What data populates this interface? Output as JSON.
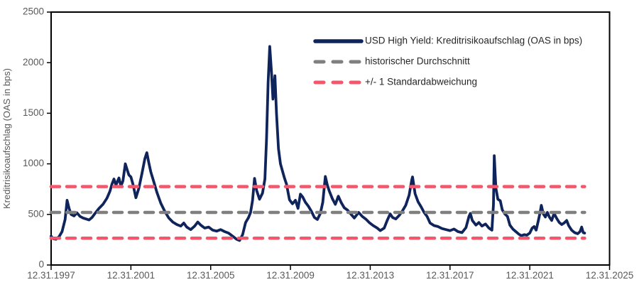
{
  "colors": {
    "background": "#ffffff",
    "axis_line": "#000000",
    "axis_text": "#595959",
    "legend_text": "#262626",
    "series_navy": "#10245c",
    "series_gray": "#7f7f7f",
    "series_red": "#f4566b"
  },
  "chart_data": {
    "type": "line",
    "title": "",
    "xlabel": "",
    "ylabel": "Kreditrisikoaufschlag (OAS in bps)",
    "grid": false,
    "legend_position": "top-right-inside",
    "x_axis": {
      "tick_labels": [
        "12.31.1997",
        "12.31.2001",
        "12.31.2005",
        "12.31.2009",
        "12.31.2013",
        "12.31.2017",
        "12.31.2021",
        "12.31.2025"
      ],
      "tick_years": [
        1998,
        2002,
        2006,
        2010,
        2014,
        2018,
        2022,
        2026
      ]
    },
    "y_axis": {
      "ticks": [
        0,
        500,
        1000,
        1500,
        2000,
        2500
      ],
      "range": [
        0,
        2500
      ]
    },
    "data_start_year": 1998.0,
    "data_end_year": 2024.75,
    "series": [
      {
        "name": "USD High Yield: Kreditrisikoaufschlag (OAS in bps)",
        "kind": "line",
        "style": "solid",
        "color": "#10245c",
        "points": [
          [
            1998.0,
            285
          ],
          [
            1998.1,
            260
          ],
          [
            1998.25,
            255
          ],
          [
            1998.4,
            280
          ],
          [
            1998.55,
            330
          ],
          [
            1998.7,
            450
          ],
          [
            1998.8,
            640
          ],
          [
            1998.9,
            560
          ],
          [
            1999.0,
            500
          ],
          [
            1999.15,
            485
          ],
          [
            1999.3,
            515
          ],
          [
            1999.45,
            480
          ],
          [
            1999.6,
            465
          ],
          [
            1999.75,
            455
          ],
          [
            1999.9,
            445
          ],
          [
            2000.05,
            470
          ],
          [
            2000.2,
            510
          ],
          [
            2000.4,
            560
          ],
          [
            2000.6,
            600
          ],
          [
            2000.8,
            660
          ],
          [
            2000.95,
            730
          ],
          [
            2001.05,
            800
          ],
          [
            2001.15,
            850
          ],
          [
            2001.25,
            790
          ],
          [
            2001.4,
            860
          ],
          [
            2001.5,
            780
          ],
          [
            2001.6,
            830
          ],
          [
            2001.72,
            1000
          ],
          [
            2001.8,
            950
          ],
          [
            2001.9,
            890
          ],
          [
            2002.0,
            870
          ],
          [
            2002.1,
            800
          ],
          [
            2002.25,
            665
          ],
          [
            2002.4,
            760
          ],
          [
            2002.55,
            900
          ],
          [
            2002.7,
            1050
          ],
          [
            2002.8,
            1110
          ],
          [
            2002.9,
            1010
          ],
          [
            2003.0,
            920
          ],
          [
            2003.15,
            820
          ],
          [
            2003.3,
            720
          ],
          [
            2003.5,
            610
          ],
          [
            2003.7,
            530
          ],
          [
            2003.9,
            465
          ],
          [
            2004.1,
            425
          ],
          [
            2004.3,
            400
          ],
          [
            2004.5,
            385
          ],
          [
            2004.65,
            415
          ],
          [
            2004.8,
            375
          ],
          [
            2005.0,
            350
          ],
          [
            2005.2,
            385
          ],
          [
            2005.35,
            425
          ],
          [
            2005.5,
            395
          ],
          [
            2005.7,
            365
          ],
          [
            2005.9,
            375
          ],
          [
            2006.1,
            345
          ],
          [
            2006.3,
            335
          ],
          [
            2006.5,
            350
          ],
          [
            2006.7,
            330
          ],
          [
            2006.9,
            315
          ],
          [
            2007.1,
            285
          ],
          [
            2007.3,
            255
          ],
          [
            2007.45,
            242
          ],
          [
            2007.6,
            300
          ],
          [
            2007.75,
            420
          ],
          [
            2007.9,
            470
          ],
          [
            2008.0,
            520
          ],
          [
            2008.1,
            640
          ],
          [
            2008.2,
            855
          ],
          [
            2008.3,
            740
          ],
          [
            2008.45,
            650
          ],
          [
            2008.6,
            710
          ],
          [
            2008.72,
            850
          ],
          [
            2008.8,
            1250
          ],
          [
            2008.88,
            1800
          ],
          [
            2008.96,
            2160
          ],
          [
            2009.05,
            1900
          ],
          [
            2009.12,
            1640
          ],
          [
            2009.22,
            1870
          ],
          [
            2009.3,
            1500
          ],
          [
            2009.4,
            1150
          ],
          [
            2009.5,
            1000
          ],
          [
            2009.6,
            930
          ],
          [
            2009.7,
            860
          ],
          [
            2009.8,
            800
          ],
          [
            2009.95,
            645
          ],
          [
            2010.1,
            605
          ],
          [
            2010.25,
            640
          ],
          [
            2010.38,
            560
          ],
          [
            2010.5,
            700
          ],
          [
            2010.62,
            670
          ],
          [
            2010.75,
            620
          ],
          [
            2010.9,
            580
          ],
          [
            2011.05,
            530
          ],
          [
            2011.2,
            470
          ],
          [
            2011.35,
            450
          ],
          [
            2011.5,
            510
          ],
          [
            2011.62,
            620
          ],
          [
            2011.75,
            875
          ],
          [
            2011.85,
            790
          ],
          [
            2011.95,
            730
          ],
          [
            2012.1,
            655
          ],
          [
            2012.25,
            600
          ],
          [
            2012.4,
            680
          ],
          [
            2012.55,
            615
          ],
          [
            2012.7,
            565
          ],
          [
            2012.85,
            545
          ],
          [
            2013.0,
            510
          ],
          [
            2013.2,
            465
          ],
          [
            2013.42,
            520
          ],
          [
            2013.6,
            480
          ],
          [
            2013.8,
            450
          ],
          [
            2013.95,
            420
          ],
          [
            2014.15,
            390
          ],
          [
            2014.35,
            365
          ],
          [
            2014.5,
            340
          ],
          [
            2014.7,
            365
          ],
          [
            2014.85,
            440
          ],
          [
            2015.0,
            505
          ],
          [
            2015.12,
            470
          ],
          [
            2015.28,
            455
          ],
          [
            2015.45,
            490
          ],
          [
            2015.6,
            530
          ],
          [
            2015.78,
            590
          ],
          [
            2015.95,
            690
          ],
          [
            2016.08,
            840
          ],
          [
            2016.12,
            870
          ],
          [
            2016.25,
            705
          ],
          [
            2016.4,
            625
          ],
          [
            2016.55,
            575
          ],
          [
            2016.7,
            520
          ],
          [
            2016.85,
            480
          ],
          [
            2017.0,
            415
          ],
          [
            2017.2,
            390
          ],
          [
            2017.4,
            380
          ],
          [
            2017.6,
            360
          ],
          [
            2017.8,
            350
          ],
          [
            2018.0,
            340
          ],
          [
            2018.2,
            355
          ],
          [
            2018.4,
            330
          ],
          [
            2018.6,
            320
          ],
          [
            2018.8,
            370
          ],
          [
            2018.95,
            480
          ],
          [
            2019.02,
            510
          ],
          [
            2019.12,
            440
          ],
          [
            2019.3,
            395
          ],
          [
            2019.45,
            420
          ],
          [
            2019.6,
            385
          ],
          [
            2019.78,
            405
          ],
          [
            2019.95,
            365
          ],
          [
            2020.1,
            345
          ],
          [
            2020.18,
            600
          ],
          [
            2020.22,
            1080
          ],
          [
            2020.3,
            760
          ],
          [
            2020.4,
            650
          ],
          [
            2020.52,
            635
          ],
          [
            2020.62,
            545
          ],
          [
            2020.75,
            505
          ],
          [
            2020.88,
            480
          ],
          [
            2021.0,
            395
          ],
          [
            2021.15,
            355
          ],
          [
            2021.3,
            330
          ],
          [
            2021.45,
            305
          ],
          [
            2021.58,
            290
          ],
          [
            2021.72,
            300
          ],
          [
            2021.85,
            295
          ],
          [
            2022.0,
            315
          ],
          [
            2022.12,
            365
          ],
          [
            2022.22,
            380
          ],
          [
            2022.32,
            345
          ],
          [
            2022.42,
            430
          ],
          [
            2022.52,
            520
          ],
          [
            2022.58,
            590
          ],
          [
            2022.68,
            505
          ],
          [
            2022.78,
            475
          ],
          [
            2022.88,
            520
          ],
          [
            2022.98,
            475
          ],
          [
            2023.1,
            440
          ],
          [
            2023.22,
            510
          ],
          [
            2023.35,
            460
          ],
          [
            2023.48,
            420
          ],
          [
            2023.6,
            400
          ],
          [
            2023.72,
            415
          ],
          [
            2023.85,
            440
          ],
          [
            2023.95,
            390
          ],
          [
            2024.1,
            345
          ],
          [
            2024.25,
            320
          ],
          [
            2024.4,
            310
          ],
          [
            2024.52,
            330
          ],
          [
            2024.6,
            375
          ],
          [
            2024.68,
            320
          ],
          [
            2024.75,
            315
          ]
        ]
      },
      {
        "name": "historischer Durchschnitt",
        "kind": "hline",
        "style": "dashed",
        "color": "#7f7f7f",
        "values": [
          520
        ]
      },
      {
        "name": "+/- 1 Standardabweichung",
        "kind": "hline",
        "style": "dashed",
        "color": "#f4566b",
        "values": [
          775,
          265
        ]
      }
    ]
  }
}
